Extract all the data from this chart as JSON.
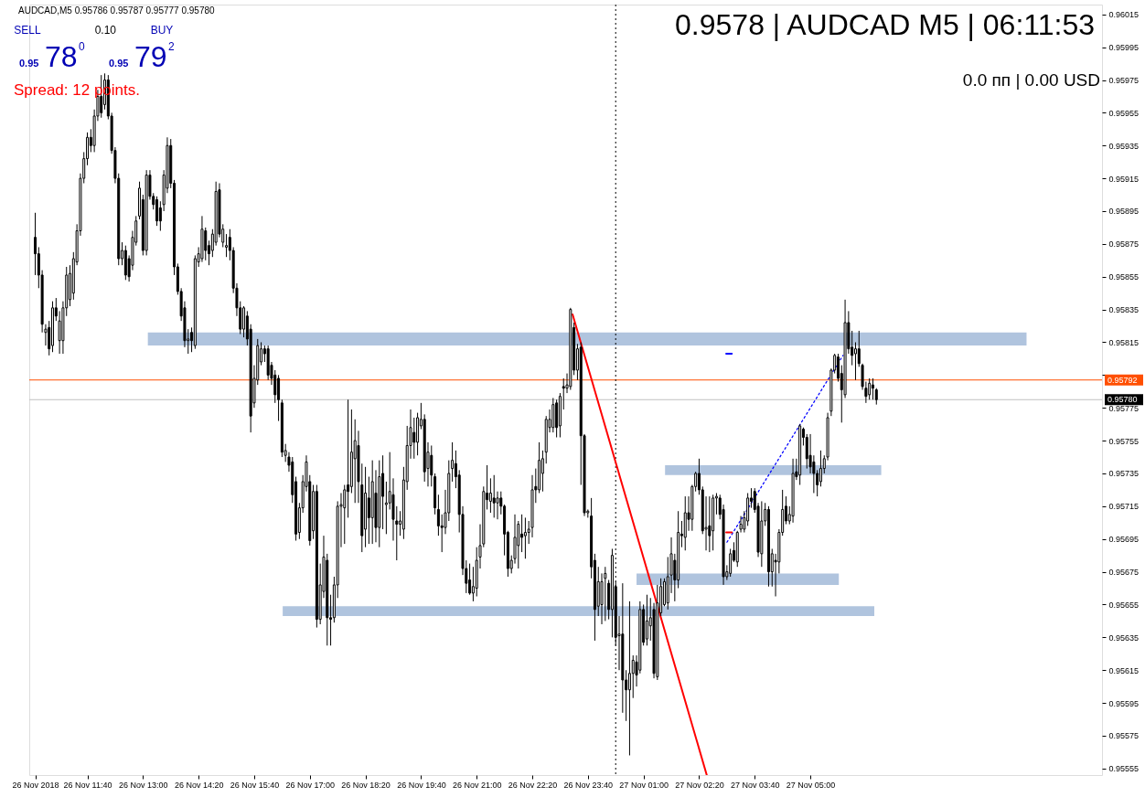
{
  "chart_data": {
    "type": "candlestick",
    "title": "AUDCAD,M5 0.95786 0.95787 0.95777 0.95780",
    "x": [
      "2018-11-26T10:25",
      "2018-11-26T10:30",
      "2018-11-26T10:35",
      "2018-11-26T10:40",
      "2018-11-26T10:45",
      "2018-11-26T10:50",
      "2018-11-26T10:55",
      "2018-11-26T11:00",
      "2018-11-26T11:05",
      "2018-11-26T11:10",
      "2018-11-26T11:15",
      "2018-11-26T11:20",
      "2018-11-26T11:25",
      "2018-11-26T11:30",
      "2018-11-26T11:35",
      "2018-11-26T11:40",
      "2018-11-26T11:45",
      "2018-11-26T11:50",
      "2018-11-26T11:55",
      "2018-11-26T12:00",
      "2018-11-26T12:05",
      "2018-11-26T12:10",
      "2018-11-26T12:15",
      "2018-11-26T12:20",
      "2018-11-26T12:25",
      "2018-11-26T12:30",
      "2018-11-26T12:35",
      "2018-11-26T12:40",
      "2018-11-26T12:45",
      "2018-11-26T12:50",
      "2018-11-26T12:55",
      "2018-11-26T13:00",
      "2018-11-26T13:05",
      "2018-11-26T13:10",
      "2018-11-26T13:15",
      "2018-11-26T13:20",
      "2018-11-26T13:25",
      "2018-11-26T13:30",
      "2018-11-26T13:35",
      "2018-11-26T13:40",
      "2018-11-26T13:45",
      "2018-11-26T13:50",
      "2018-11-26T13:55",
      "2018-11-26T14:00",
      "2018-11-26T14:05",
      "2018-11-26T14:10",
      "2018-11-26T14:15",
      "2018-11-26T14:20",
      "2018-11-26T14:25",
      "2018-11-26T14:30",
      "2018-11-26T14:35",
      "2018-11-26T14:40",
      "2018-11-26T14:45",
      "2018-11-26T14:50",
      "2018-11-26T14:55",
      "2018-11-26T15:00",
      "2018-11-26T15:05",
      "2018-11-26T15:10",
      "2018-11-26T15:15",
      "2018-11-26T15:20",
      "2018-11-26T15:25",
      "2018-11-26T15:30",
      "2018-11-26T15:35",
      "2018-11-26T15:40",
      "2018-11-26T15:45",
      "2018-11-26T15:50",
      "2018-11-26T15:55",
      "2018-11-26T16:00",
      "2018-11-26T16:05",
      "2018-11-26T16:10",
      "2018-11-26T16:15",
      "2018-11-26T16:20",
      "2018-11-26T16:25",
      "2018-11-26T16:30",
      "2018-11-26T16:35",
      "2018-11-26T16:40",
      "2018-11-26T16:45",
      "2018-11-26T16:50",
      "2018-11-26T16:55",
      "2018-11-26T17:00",
      "2018-11-26T17:05",
      "2018-11-26T17:10",
      "2018-11-26T17:15",
      "2018-11-26T17:20",
      "2018-11-26T17:25",
      "2018-11-26T17:30",
      "2018-11-26T17:35",
      "2018-11-26T17:40",
      "2018-11-26T17:45",
      "2018-11-26T17:50",
      "2018-11-26T17:55",
      "2018-11-26T18:00",
      "2018-11-26T18:05",
      "2018-11-26T18:10",
      "2018-11-26T18:15",
      "2018-11-26T18:20",
      "2018-11-26T18:25",
      "2018-11-26T18:30",
      "2018-11-26T18:35",
      "2018-11-26T18:40",
      "2018-11-26T18:45",
      "2018-11-26T18:50",
      "2018-11-26T18:55",
      "2018-11-26T19:00",
      "2018-11-26T19:05",
      "2018-11-26T19:10",
      "2018-11-26T19:15",
      "2018-11-26T19:20",
      "2018-11-26T19:25",
      "2018-11-26T19:30",
      "2018-11-26T19:35",
      "2018-11-26T19:40",
      "2018-11-26T19:45",
      "2018-11-26T19:50",
      "2018-11-26T19:55",
      "2018-11-26T20:00",
      "2018-11-26T20:05",
      "2018-11-26T20:10",
      "2018-11-26T20:15",
      "2018-11-26T20:20",
      "2018-11-26T20:25",
      "2018-11-26T20:30",
      "2018-11-26T20:35",
      "2018-11-26T20:40",
      "2018-11-26T20:45",
      "2018-11-26T20:50",
      "2018-11-26T20:55",
      "2018-11-26T21:00",
      "2018-11-26T21:05",
      "2018-11-26T21:10",
      "2018-11-26T21:15",
      "2018-11-26T21:20",
      "2018-11-26T21:25",
      "2018-11-26T21:30",
      "2018-11-26T21:35",
      "2018-11-26T21:40",
      "2018-11-26T21:45",
      "2018-11-26T21:50",
      "2018-11-26T21:55",
      "2018-11-26T22:00",
      "2018-11-26T22:05",
      "2018-11-26T22:10",
      "2018-11-26T22:15",
      "2018-11-26T22:20",
      "2018-11-26T22:25",
      "2018-11-26T22:30",
      "2018-11-26T22:35",
      "2018-11-26T22:40",
      "2018-11-26T22:45",
      "2018-11-26T22:50",
      "2018-11-26T22:55",
      "2018-11-26T23:00",
      "2018-11-26T23:05",
      "2018-11-26T23:10",
      "2018-11-26T23:15",
      "2018-11-26T23:20",
      "2018-11-26T23:25",
      "2018-11-26T23:30",
      "2018-11-26T23:35",
      "2018-11-26T23:40",
      "2018-11-26T23:45",
      "2018-11-26T23:50",
      "2018-11-26T23:55",
      "2018-11-27T00:00",
      "2018-11-27T00:05",
      "2018-11-27T00:10",
      "2018-11-27T00:15",
      "2018-11-27T00:20",
      "2018-11-27T00:25",
      "2018-11-27T00:30",
      "2018-11-27T00:35",
      "2018-11-27T00:40",
      "2018-11-27T00:45",
      "2018-11-27T00:50",
      "2018-11-27T00:55",
      "2018-11-27T01:00",
      "2018-11-27T01:05",
      "2018-11-27T01:10",
      "2018-11-27T01:15",
      "2018-11-27T01:20",
      "2018-11-27T01:25",
      "2018-11-27T01:30",
      "2018-11-27T01:35",
      "2018-11-27T01:40",
      "2018-11-27T01:45",
      "2018-11-27T01:50",
      "2018-11-27T01:55",
      "2018-11-27T02:00",
      "2018-11-27T02:05",
      "2018-11-27T02:10",
      "2018-11-27T02:15",
      "2018-11-27T02:20",
      "2018-11-27T02:25",
      "2018-11-27T02:30",
      "2018-11-27T02:35",
      "2018-11-27T02:40",
      "2018-11-27T02:45",
      "2018-11-27T02:50",
      "2018-11-27T02:55",
      "2018-11-27T03:00",
      "2018-11-27T03:05",
      "2018-11-27T03:10",
      "2018-11-27T03:15",
      "2018-11-27T03:20",
      "2018-11-27T03:25",
      "2018-11-27T03:30",
      "2018-11-27T03:35",
      "2018-11-27T03:40",
      "2018-11-27T03:45",
      "2018-11-27T03:50",
      "2018-11-27T03:55",
      "2018-11-27T04:00",
      "2018-11-27T04:05",
      "2018-11-27T04:10",
      "2018-11-27T04:15",
      "2018-11-27T04:20",
      "2018-11-27T04:25",
      "2018-11-27T04:30",
      "2018-11-27T04:35",
      "2018-11-27T04:40",
      "2018-11-27T04:45",
      "2018-11-27T04:50",
      "2018-11-27T04:55",
      "2018-11-27T05:00",
      "2018-11-27T05:05",
      "2018-11-27T05:10",
      "2018-11-27T05:15",
      "2018-11-27T05:20",
      "2018-11-27T05:25",
      "2018-11-27T05:30",
      "2018-11-27T05:35",
      "2018-11-27T05:40",
      "2018-11-27T05:45",
      "2018-11-27T05:50",
      "2018-11-27T05:55",
      "2018-11-27T06:00",
      "2018-11-27T06:05",
      "2018-11-27T06:10",
      "2018-11-27T06:15",
      "2018-11-27T06:20",
      "2018-11-27T06:25",
      "2018-11-27T06:30",
      "2018-11-27T06:35"
    ],
    "ohlc": [
      [
        0.95879,
        0.95894,
        0.95856,
        0.95869
      ],
      [
        0.95869,
        0.95873,
        0.95848,
        0.95856
      ],
      [
        0.95856,
        0.95859,
        0.95821,
        0.95826
      ],
      [
        0.95821,
        0.95826,
        0.95813,
        0.95823
      ],
      [
        0.95824,
        0.95828,
        0.95807,
        0.95811
      ],
      [
        0.95813,
        0.9584,
        0.95809,
        0.95836
      ],
      [
        0.95836,
        0.95842,
        0.95828,
        0.95831
      ],
      [
        0.95816,
        0.95834,
        0.95808,
        0.95828
      ],
      [
        0.95816,
        0.9584,
        0.95808,
        0.95836
      ],
      [
        0.95836,
        0.95861,
        0.95831,
        0.95856
      ],
      [
        0.95841,
        0.95862,
        0.95837,
        0.95857
      ],
      [
        0.95845,
        0.9587,
        0.95841,
        0.95866
      ],
      [
        0.95864,
        0.95887,
        0.95862,
        0.95883
      ],
      [
        0.95883,
        0.95918,
        0.9588,
        0.95915
      ],
      [
        0.95915,
        0.95931,
        0.95912,
        0.95927
      ],
      [
        0.95927,
        0.95943,
        0.95923,
        0.9594
      ],
      [
        0.9594,
        0.95945,
        0.95931,
        0.95935
      ],
      [
        0.95935,
        0.95957,
        0.95931,
        0.95953
      ],
      [
        0.95953,
        0.95969,
        0.9595,
        0.95965
      ],
      [
        0.95965,
        0.95978,
        0.95952,
        0.95955
      ],
      [
        0.9596,
        0.95979,
        0.95957,
        0.95975
      ],
      [
        0.95975,
        0.95978,
        0.95951,
        0.95953
      ],
      [
        0.95953,
        0.95955,
        0.9593,
        0.95932
      ],
      [
        0.95932,
        0.95934,
        0.95912,
        0.95915
      ],
      [
        0.95915,
        0.95918,
        0.95862,
        0.95866
      ],
      [
        0.95866,
        0.95876,
        0.95862,
        0.95871
      ],
      [
        0.95871,
        0.95874,
        0.95853,
        0.95856
      ],
      [
        0.95866,
        0.95868,
        0.95852,
        0.95855
      ],
      [
        0.95862,
        0.95883,
        0.95859,
        0.95879
      ],
      [
        0.95876,
        0.95892,
        0.95874,
        0.95889
      ],
      [
        0.95892,
        0.95913,
        0.9589,
        0.95909
      ],
      [
        0.95902,
        0.95905,
        0.95868,
        0.95871
      ],
      [
        0.95871,
        0.9592,
        0.95868,
        0.95917
      ],
      [
        0.95917,
        0.9592,
        0.95902,
        0.95904
      ],
      [
        0.95904,
        0.95906,
        0.95896,
        0.95899
      ],
      [
        0.95902,
        0.95904,
        0.95886,
        0.95889
      ],
      [
        0.95897,
        0.95901,
        0.95883,
        0.95889
      ],
      [
        0.95899,
        0.9592,
        0.95895,
        0.95917
      ],
      [
        0.95909,
        0.9594,
        0.95906,
        0.95935
      ],
      [
        0.95935,
        0.95939,
        0.95909,
        0.95912
      ],
      [
        0.95912,
        0.95914,
        0.95856,
        0.95861
      ],
      [
        0.95861,
        0.95863,
        0.95844,
        0.95846
      ],
      [
        0.95846,
        0.95848,
        0.95828,
        0.95831
      ],
      [
        0.95836,
        0.9584,
        0.95812,
        0.95816
      ],
      [
        0.95816,
        0.95823,
        0.95808,
        0.95817
      ],
      [
        0.95821,
        0.95824,
        0.95809,
        0.95816
      ],
      [
        0.95813,
        0.95868,
        0.95811,
        0.95866
      ],
      [
        0.95864,
        0.95873,
        0.95861,
        0.95869
      ],
      [
        0.95866,
        0.95892,
        0.95864,
        0.95884
      ],
      [
        0.95883,
        0.95885,
        0.95865,
        0.95871
      ],
      [
        0.95874,
        0.95877,
        0.95862,
        0.95869
      ],
      [
        0.95871,
        0.95884,
        0.95867,
        0.95881
      ],
      [
        0.95876,
        0.95913,
        0.95874,
        0.95907
      ],
      [
        0.95908,
        0.95912,
        0.95879,
        0.95881
      ],
      [
        0.95876,
        0.95887,
        0.95873,
        0.95884
      ],
      [
        0.95873,
        0.95881,
        0.95867,
        0.95874
      ],
      [
        0.95879,
        0.95884,
        0.95865,
        0.95871
      ],
      [
        0.95871,
        0.95873,
        0.95845,
        0.95848
      ],
      [
        0.95848,
        0.95851,
        0.95831,
        0.95836
      ],
      [
        0.95836,
        0.9584,
        0.9582,
        0.95823
      ],
      [
        0.95823,
        0.95837,
        0.95818,
        0.95836
      ],
      [
        0.95831,
        0.95834,
        0.95813,
        0.95817
      ],
      [
        0.95823,
        0.95826,
        0.9576,
        0.9577
      ],
      [
        0.95778,
        0.95801,
        0.95775,
        0.95793
      ],
      [
        0.95792,
        0.95817,
        0.95789,
        0.95813
      ],
      [
        0.95803,
        0.95815,
        0.95801,
        0.95811
      ],
      [
        0.95811,
        0.95813,
        0.95803,
        0.95808
      ],
      [
        0.95811,
        0.95813,
        0.95792,
        0.95795
      ],
      [
        0.95801,
        0.95803,
        0.95789,
        0.95793
      ],
      [
        0.95795,
        0.95798,
        0.95778,
        0.95783
      ],
      [
        0.95793,
        0.95795,
        0.95767,
        0.9578
      ],
      [
        0.95778,
        0.9578,
        0.95745,
        0.95748
      ],
      [
        0.95746,
        0.95753,
        0.95742,
        0.95749
      ],
      [
        0.95745,
        0.95748,
        0.95736,
        0.9574
      ],
      [
        0.95742,
        0.95745,
        0.95717,
        0.95722
      ],
      [
        0.9573,
        0.95733,
        0.95694,
        0.95698
      ],
      [
        0.95699,
        0.95717,
        0.95695,
        0.95714
      ],
      [
        0.95714,
        0.95734,
        0.95711,
        0.9573
      ],
      [
        0.95727,
        0.95746,
        0.95724,
        0.95742
      ],
      [
        0.9573,
        0.95734,
        0.95691,
        0.95694
      ],
      [
        0.957,
        0.95728,
        0.95695,
        0.95724
      ],
      [
        0.95724,
        0.95728,
        0.95641,
        0.95646
      ],
      [
        0.95646,
        0.9568,
        0.95643,
        0.95667
      ],
      [
        0.95663,
        0.95697,
        0.95659,
        0.95684
      ],
      [
        0.95682,
        0.95686,
        0.9563,
        0.95647
      ],
      [
        0.95647,
        0.95661,
        0.9563,
        0.95646
      ],
      [
        0.95647,
        0.95672,
        0.95644,
        0.95667
      ],
      [
        0.95667,
        0.95718,
        0.95659,
        0.95715
      ],
      [
        0.95715,
        0.95723,
        0.9569,
        0.95716
      ],
      [
        0.95714,
        0.95728,
        0.95692,
        0.95725
      ],
      [
        0.95728,
        0.9578,
        0.95708,
        0.95724
      ],
      [
        0.95727,
        0.95774,
        0.95723,
        0.95748
      ],
      [
        0.95744,
        0.95768,
        0.95717,
        0.95755
      ],
      [
        0.95752,
        0.95761,
        0.95717,
        0.9573
      ],
      [
        0.95728,
        0.95741,
        0.95687,
        0.95697
      ],
      [
        0.95701,
        0.95739,
        0.9569,
        0.95723
      ],
      [
        0.9572,
        0.95733,
        0.95692,
        0.95708
      ],
      [
        0.95708,
        0.95743,
        0.95692,
        0.9573
      ],
      [
        0.95723,
        0.95737,
        0.95693,
        0.95702
      ],
      [
        0.95702,
        0.95743,
        0.9569,
        0.95733
      ],
      [
        0.95735,
        0.95746,
        0.95701,
        0.95721
      ],
      [
        0.95716,
        0.9573,
        0.95698,
        0.95717
      ],
      [
        0.95717,
        0.95748,
        0.95713,
        0.95724
      ],
      [
        0.95722,
        0.95732,
        0.95694,
        0.95707
      ],
      [
        0.95706,
        0.95715,
        0.95682,
        0.95704
      ],
      [
        0.95704,
        0.95712,
        0.95697,
        0.95706
      ],
      [
        0.95701,
        0.95739,
        0.95695,
        0.95731
      ],
      [
        0.9573,
        0.95764,
        0.95725,
        0.95752
      ],
      [
        0.95752,
        0.95774,
        0.95744,
        0.95763
      ],
      [
        0.9576,
        0.95769,
        0.95744,
        0.95754
      ],
      [
        0.95754,
        0.95772,
        0.95746,
        0.95769
      ],
      [
        0.95764,
        0.95778,
        0.95762,
        0.95768
      ],
      [
        0.95768,
        0.95771,
        0.9573,
        0.95736
      ],
      [
        0.95738,
        0.95754,
        0.95727,
        0.95748
      ],
      [
        0.95746,
        0.95752,
        0.95727,
        0.95734
      ],
      [
        0.95733,
        0.95735,
        0.9571,
        0.95714
      ],
      [
        0.95713,
        0.95722,
        0.95697,
        0.95703
      ],
      [
        0.95703,
        0.9571,
        0.95687,
        0.95702
      ],
      [
        0.95702,
        0.95725,
        0.95698,
        0.95711
      ],
      [
        0.95711,
        0.95743,
        0.95706,
        0.95735
      ],
      [
        0.95738,
        0.95754,
        0.9573,
        0.95743
      ],
      [
        0.95741,
        0.95749,
        0.95726,
        0.95733
      ],
      [
        0.95734,
        0.95737,
        0.95699,
        0.9571
      ],
      [
        0.9571,
        0.95715,
        0.95673,
        0.95677
      ],
      [
        0.95677,
        0.95682,
        0.95662,
        0.95668
      ],
      [
        0.9567,
        0.9568,
        0.95661,
        0.95662
      ],
      [
        0.95662,
        0.95678,
        0.95657,
        0.95666
      ],
      [
        0.95665,
        0.9569,
        0.9566,
        0.95682
      ],
      [
        0.95684,
        0.95704,
        0.95677,
        0.95691
      ],
      [
        0.95692,
        0.95727,
        0.9569,
        0.95724
      ],
      [
        0.95723,
        0.9574,
        0.95713,
        0.95719
      ],
      [
        0.95718,
        0.95732,
        0.95711,
        0.95723
      ],
      [
        0.9572,
        0.95734,
        0.95708,
        0.95717
      ],
      [
        0.95717,
        0.95724,
        0.95707,
        0.9572
      ],
      [
        0.9572,
        0.95724,
        0.9571,
        0.95715
      ],
      [
        0.95715,
        0.95716,
        0.95685,
        0.95698
      ],
      [
        0.95699,
        0.957,
        0.95672,
        0.95677
      ],
      [
        0.95677,
        0.95685,
        0.95674,
        0.95682
      ],
      [
        0.95683,
        0.9571,
        0.9568,
        0.95696
      ],
      [
        0.95691,
        0.95706,
        0.95677,
        0.95704
      ],
      [
        0.95698,
        0.9571,
        0.95687,
        0.95696
      ],
      [
        0.95697,
        0.95708,
        0.95683,
        0.95699
      ],
      [
        0.95699,
        0.95706,
        0.95692,
        0.95701
      ],
      [
        0.95702,
        0.95734,
        0.95696,
        0.95725
      ],
      [
        0.95727,
        0.95738,
        0.95717,
        0.95725
      ],
      [
        0.95725,
        0.95754,
        0.95723,
        0.95743
      ],
      [
        0.95735,
        0.95749,
        0.95724,
        0.95744
      ],
      [
        0.95748,
        0.9577,
        0.95741,
        0.95768
      ],
      [
        0.95763,
        0.95774,
        0.9576,
        0.95768
      ],
      [
        0.95763,
        0.95781,
        0.9576,
        0.95777
      ],
      [
        0.95778,
        0.9578,
        0.95757,
        0.95763
      ],
      [
        0.95764,
        0.95784,
        0.95757,
        0.95782
      ],
      [
        0.95788,
        0.95793,
        0.95774,
        0.95787
      ],
      [
        0.95787,
        0.95796,
        0.95784,
        0.95789
      ],
      [
        0.95788,
        0.95836,
        0.95786,
        0.95835
      ],
      [
        0.95824,
        0.95827,
        0.95795,
        0.95798
      ],
      [
        0.95798,
        0.95814,
        0.95792,
        0.95811
      ],
      [
        0.95812,
        0.95815,
        0.95728,
        0.95758
      ],
      [
        0.95758,
        0.95759,
        0.95709,
        0.95711
      ],
      [
        0.95711,
        0.95713,
        0.95708,
        0.95712
      ],
      [
        0.95709,
        0.9572,
        0.95671,
        0.95678
      ],
      [
        0.95682,
        0.95686,
        0.95633,
        0.95652
      ],
      [
        0.95654,
        0.95678,
        0.95648,
        0.95669
      ],
      [
        0.95655,
        0.95674,
        0.95643,
        0.95669
      ],
      [
        0.95671,
        0.95678,
        0.95645,
        0.95674
      ],
      [
        0.95668,
        0.9567,
        0.95646,
        0.95652
      ],
      [
        0.95652,
        0.95689,
        0.95635,
        0.95685
      ],
      [
        0.95666,
        0.95669,
        0.9563,
        0.95635
      ],
      [
        0.95636,
        0.95648,
        0.95615,
        0.95637
      ],
      [
        0.95637,
        0.95668,
        0.95589,
        0.95609
      ],
      [
        0.95609,
        0.95615,
        0.95584,
        0.95603
      ],
      [
        0.95603,
        0.95657,
        0.95563,
        0.95613
      ],
      [
        0.95613,
        0.95624,
        0.95598,
        0.95621
      ],
      [
        0.9562,
        0.95624,
        0.95605,
        0.95612
      ],
      [
        0.95615,
        0.95657,
        0.95613,
        0.95652
      ],
      [
        0.95652,
        0.95655,
        0.9563,
        0.95632
      ],
      [
        0.95634,
        0.95661,
        0.9563,
        0.95645
      ],
      [
        0.95642,
        0.95659,
        0.95633,
        0.95647
      ],
      [
        0.95652,
        0.95656,
        0.9561,
        0.95613
      ],
      [
        0.95611,
        0.95667,
        0.95609,
        0.95656
      ],
      [
        0.9565,
        0.95671,
        0.95648,
        0.95666
      ],
      [
        0.95655,
        0.95671,
        0.95654,
        0.95669
      ],
      [
        0.95656,
        0.95684,
        0.95652,
        0.95672
      ],
      [
        0.95673,
        0.95696,
        0.95662,
        0.95686
      ],
      [
        0.95682,
        0.95686,
        0.95657,
        0.9567
      ],
      [
        0.9567,
        0.95712,
        0.95665,
        0.95699
      ],
      [
        0.95698,
        0.95706,
        0.9569,
        0.95697
      ],
      [
        0.95696,
        0.95721,
        0.95688,
        0.95711
      ],
      [
        0.95711,
        0.95721,
        0.957,
        0.95707
      ],
      [
        0.95707,
        0.95728,
        0.957,
        0.95727
      ],
      [
        0.95727,
        0.95736,
        0.95724,
        0.95735
      ],
      [
        0.95735,
        0.95744,
        0.95722,
        0.95725
      ],
      [
        0.95725,
        0.95727,
        0.95698,
        0.957
      ],
      [
        0.95701,
        0.95721,
        0.95688,
        0.95702
      ],
      [
        0.95703,
        0.95721,
        0.95687,
        0.95697
      ],
      [
        0.957,
        0.95722,
        0.95688,
        0.9572
      ],
      [
        0.9572,
        0.95723,
        0.9571,
        0.95721
      ],
      [
        0.9572,
        0.95722,
        0.95707,
        0.9571
      ],
      [
        0.95713,
        0.95716,
        0.95667,
        0.95672
      ],
      [
        0.95672,
        0.95679,
        0.9567,
        0.95675
      ],
      [
        0.95674,
        0.95689,
        0.95672,
        0.95686
      ],
      [
        0.95688,
        0.95693,
        0.95681,
        0.95682
      ],
      [
        0.95681,
        0.957,
        0.95678,
        0.95699
      ],
      [
        0.95701,
        0.95709,
        0.95699,
        0.95704
      ],
      [
        0.95701,
        0.95712,
        0.95699,
        0.95708
      ],
      [
        0.95706,
        0.95723,
        0.95703,
        0.9572
      ],
      [
        0.9572,
        0.95726,
        0.95714,
        0.95718
      ],
      [
        0.95724,
        0.95726,
        0.95711,
        0.95713
      ],
      [
        0.95715,
        0.95717,
        0.95684,
        0.95687
      ],
      [
        0.95686,
        0.95718,
        0.95678,
        0.95706
      ],
      [
        0.95706,
        0.95717,
        0.95703,
        0.95713
      ],
      [
        0.95713,
        0.95715,
        0.95666,
        0.95675
      ],
      [
        0.95675,
        0.95689,
        0.95666,
        0.95686
      ],
      [
        0.95682,
        0.95686,
        0.9566,
        0.95681
      ],
      [
        0.95681,
        0.95701,
        0.95674,
        0.95699
      ],
      [
        0.95699,
        0.95725,
        0.95697,
        0.95713
      ],
      [
        0.95715,
        0.95721,
        0.95704,
        0.95706
      ],
      [
        0.95706,
        0.95715,
        0.95704,
        0.9571
      ],
      [
        0.95709,
        0.95744,
        0.95705,
        0.95735
      ],
      [
        0.95736,
        0.95744,
        0.95731,
        0.95733
      ],
      [
        0.95734,
        0.95765,
        0.95728,
        0.95764
      ],
      [
        0.95762,
        0.95763,
        0.95752,
        0.95757
      ],
      [
        0.95757,
        0.95759,
        0.95738,
        0.95744
      ],
      [
        0.95746,
        0.95759,
        0.95735,
        0.95739
      ],
      [
        0.95742,
        0.95746,
        0.95723,
        0.95735
      ],
      [
        0.95735,
        0.95737,
        0.95721,
        0.95728
      ],
      [
        0.9573,
        0.95749,
        0.95727,
        0.95738
      ],
      [
        0.95738,
        0.95746,
        0.95735,
        0.95744
      ],
      [
        0.95745,
        0.95772,
        0.95743,
        0.95769
      ],
      [
        0.95773,
        0.95799,
        0.9577,
        0.95798
      ],
      [
        0.95798,
        0.95808,
        0.95796,
        0.95807
      ],
      [
        0.95806,
        0.95808,
        0.95791,
        0.95793
      ],
      [
        0.95796,
        0.95801,
        0.95766,
        0.95786
      ],
      [
        0.95783,
        0.95841,
        0.95781,
        0.95827
      ],
      [
        0.95827,
        0.95834,
        0.95808,
        0.95811
      ],
      [
        0.95812,
        0.95822,
        0.95801,
        0.95807
      ],
      [
        0.95808,
        0.95815,
        0.95792,
        0.95811
      ],
      [
        0.95811,
        0.95822,
        0.958,
        0.95802
      ],
      [
        0.95801,
        0.95802,
        0.95786,
        0.95788
      ],
      [
        0.95787,
        0.95791,
        0.95778,
        0.95782
      ],
      [
        0.95783,
        0.95793,
        0.9578,
        0.9579
      ],
      [
        0.95789,
        0.95793,
        0.9578,
        0.95787
      ],
      [
        0.95786,
        0.95787,
        0.95777,
        0.9578
      ]
    ],
    "series": [
      {
        "type": "line",
        "color": "#b0c4de",
        "x": [
          "2018-11-26T13:07",
          "2018-11-27T10:11"
        ],
        "values": [
          null,
          null
        ],
        "lower": [
          0.95813,
          0.95813
        ],
        "upper": [
          0.95821,
          0.95821
        ]
      },
      {
        "type": "line",
        "color": "#b0c4de",
        "x": [
          "2018-11-27T01:31",
          "2018-11-27T06:42"
        ],
        "values": [
          null,
          null
        ],
        "lower": [
          0.95734,
          0.95734
        ],
        "upper": [
          0.9574,
          0.9574
        ]
      },
      {
        "type": "line",
        "color": "#b0c4de",
        "x": [
          "2018-11-27T00:50",
          "2018-11-27T05:41"
        ],
        "values": [
          null,
          null
        ],
        "lower": [
          0.95667,
          0.95667
        ],
        "upper": [
          0.95674,
          0.95674
        ]
      },
      {
        "type": "line",
        "color": "#b0c4de",
        "x": [
          "2018-11-26T16:21",
          "2018-11-27T06:32"
        ],
        "values": [
          null,
          null
        ],
        "lower": [
          0.95648,
          0.95648
        ],
        "upper": [
          0.95654,
          0.95654
        ]
      },
      {
        "type": "line",
        "color": "#ff0000",
        "line_style": "solid",
        "x": [
          "2018-11-26T23:18",
          "2018-11-27T02:31"
        ],
        "values": [
          0.95832,
          0.95551
        ]
      },
      {
        "type": "line",
        "color": "#0000ff",
        "line_style": "dotted",
        "x": [
          "2018-11-27T03:00",
          "2018-11-27T05:47"
        ],
        "values": [
          0.95693,
          0.95807
        ]
      },
      {
        "type": "line",
        "color": "#0000ff",
        "line_style": "solid",
        "x": [
          "2018-11-27T02:59",
          "2018-11-27T03:07"
        ],
        "values": [
          0.95808,
          0.95808
        ]
      },
      {
        "type": "line",
        "color": "#ff0000",
        "line_style": "solid",
        "x": [
          "2018-11-27T02:59",
          "2018-11-27T03:07"
        ],
        "values": [
          0.95699,
          0.95699
        ]
      }
    ],
    "xlim": [
      "2018-11-26T10:23",
      "2018-11-27T11:53"
    ],
    "xticks": [
      {
        "value": "2018-11-26T10:25",
        "label": "26 Nov 2018"
      },
      {
        "value": "2018-11-26T11:40",
        "label": "26 Nov 11:40"
      },
      {
        "value": "2018-11-26T13:00",
        "label": "26 Nov 13:00"
      },
      {
        "value": "2018-11-26T14:20",
        "label": "26 Nov 14:20"
      },
      {
        "value": "2018-11-26T15:40",
        "label": "26 Nov 15:40"
      },
      {
        "value": "2018-11-26T17:00",
        "label": "26 Nov 17:00"
      },
      {
        "value": "2018-11-26T18:20",
        "label": "26 Nov 18:20"
      },
      {
        "value": "2018-11-26T19:40",
        "label": "26 Nov 19:40"
      },
      {
        "value": "2018-11-26T21:00",
        "label": "26 Nov 21:00"
      },
      {
        "value": "2018-11-26T22:20",
        "label": "26 Nov 22:20"
      },
      {
        "value": "2018-11-26T23:40",
        "label": "26 Nov 23:40"
      },
      {
        "value": "2018-11-27T01:00",
        "label": "27 Nov 01:00"
      },
      {
        "value": "2018-11-27T02:20",
        "label": "27 Nov 02:20"
      },
      {
        "value": "2018-11-27T03:40",
        "label": "27 Nov 03:40"
      },
      {
        "value": "2018-11-27T05:00",
        "label": "27 Nov 05:00"
      }
    ],
    "ylim": [
      0.95551,
      0.96021
    ],
    "yticks": [
      0.96015,
      0.95995,
      0.95975,
      0.95955,
      0.95935,
      0.95915,
      0.95895,
      0.95875,
      0.95855,
      0.95835,
      0.95815,
      {
        "value": 0.95795,
        "label": null
      },
      0.95775,
      0.95755,
      0.95735,
      0.95715,
      0.95695,
      0.95675,
      0.95655,
      0.95635,
      0.95615,
      0.95595,
      0.95575,
      0.95555
    ],
    "ref_lines": [
      {
        "axis": "y",
        "value": 0.95792,
        "label": "0.95792",
        "color": "#ff4f00"
      },
      {
        "axis": "y",
        "value": 0.9578,
        "label": "0.95780",
        "color": "#c0c0c0"
      },
      {
        "axis": "x",
        "value": "2018-11-27T00:20",
        "color": "#000000",
        "line_style": "dotted"
      }
    ],
    "annotations": [
      "0.9578 | AUDCAD M5 | 06:11:53",
      "0.0 пп | 0.00 USD",
      "SELL",
      "0.10",
      "BUY",
      "0.95",
      "78",
      "0",
      "0.95",
      "79",
      "2",
      "Spread: 12 points."
    ]
  }
}
